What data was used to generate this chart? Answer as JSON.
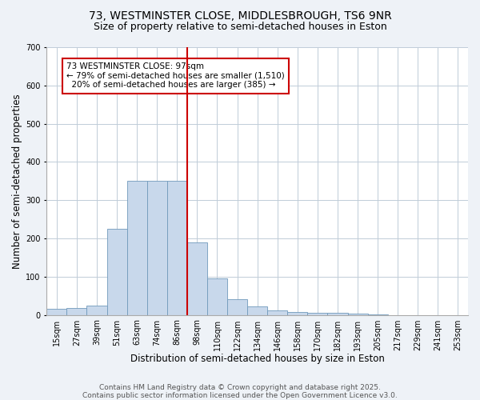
{
  "title_line1": "73, WESTMINSTER CLOSE, MIDDLESBROUGH, TS6 9NR",
  "title_line2": "Size of property relative to semi-detached houses in Eston",
  "xlabel": "Distribution of semi-detached houses by size in Eston",
  "ylabel": "Number of semi-detached properties",
  "bin_labels": [
    "15sqm",
    "27sqm",
    "39sqm",
    "51sqm",
    "63sqm",
    "74sqm",
    "86sqm",
    "98sqm",
    "110sqm",
    "122sqm",
    "134sqm",
    "146sqm",
    "158sqm",
    "170sqm",
    "182sqm",
    "193sqm",
    "205sqm",
    "217sqm",
    "229sqm",
    "241sqm",
    "253sqm"
  ],
  "bar_heights": [
    15,
    18,
    25,
    225,
    350,
    350,
    350,
    190,
    95,
    40,
    22,
    12,
    8,
    6,
    5,
    3,
    1,
    0,
    0,
    0,
    0
  ],
  "bar_color": "#c8d8eb",
  "bar_edge_color": "#7099bb",
  "property_size_bin": 7,
  "vline_color": "#cc0000",
  "annotation_text": "73 WESTMINSTER CLOSE: 97sqm\n← 79% of semi-detached houses are smaller (1,510)\n  20% of semi-detached houses are larger (385) →",
  "annotation_box_color": "#ffffff",
  "annotation_box_edge_color": "#cc0000",
  "ylim": [
    0,
    700
  ],
  "yticks": [
    0,
    100,
    200,
    300,
    400,
    500,
    600,
    700
  ],
  "footer_line1": "Contains HM Land Registry data © Crown copyright and database right 2025.",
  "footer_line2": "Contains public sector information licensed under the Open Government Licence v3.0.",
  "background_color": "#eef2f7",
  "plot_bg_color": "#ffffff",
  "grid_color": "#c0ccd8",
  "title_fontsize": 10,
  "subtitle_fontsize": 9,
  "label_fontsize": 8.5,
  "tick_fontsize": 7,
  "footer_fontsize": 6.5,
  "annot_fontsize": 7.5
}
